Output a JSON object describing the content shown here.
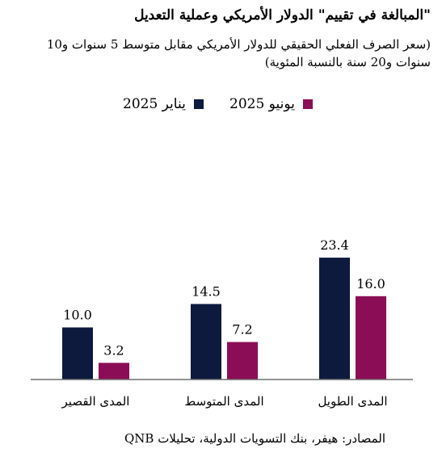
{
  "title": "\"المبالغة في تقييم\" الدولار الأمريكي وعملية التعديل",
  "subtitle": "(سعر الصرف الفعلي الحقيقي للدولار الأمريكي مقابل متوسط 5 سنوات و10 سنوات و20 سنة بالنسبة المئوية)",
  "source": "المصادر: هيفر، بنك التسويات الدولية، تحليلات QNB",
  "colors": {
    "jan": "#0d1a3e",
    "jun": "#8b0d55",
    "axis": "#6f6f6f"
  },
  "chart_data": {
    "type": "bar",
    "categories": [
      "المدى القصير",
      "المدى المتوسط",
      "المدى الطويل"
    ],
    "series": [
      {
        "name": "يناير 2025",
        "values": [
          10.0,
          14.5,
          23.4
        ]
      },
      {
        "name": "يونيو 2025",
        "values": [
          3.2,
          7.2,
          16.0
        ]
      }
    ],
    "data_labels": [
      [
        "10.0",
        "14.5",
        "23.4"
      ],
      [
        "3.2",
        "7.2",
        "16.0"
      ]
    ],
    "ylim": [
      0,
      25
    ],
    "xlabel": "",
    "ylabel": "",
    "grid": false,
    "legend": "top-center"
  }
}
